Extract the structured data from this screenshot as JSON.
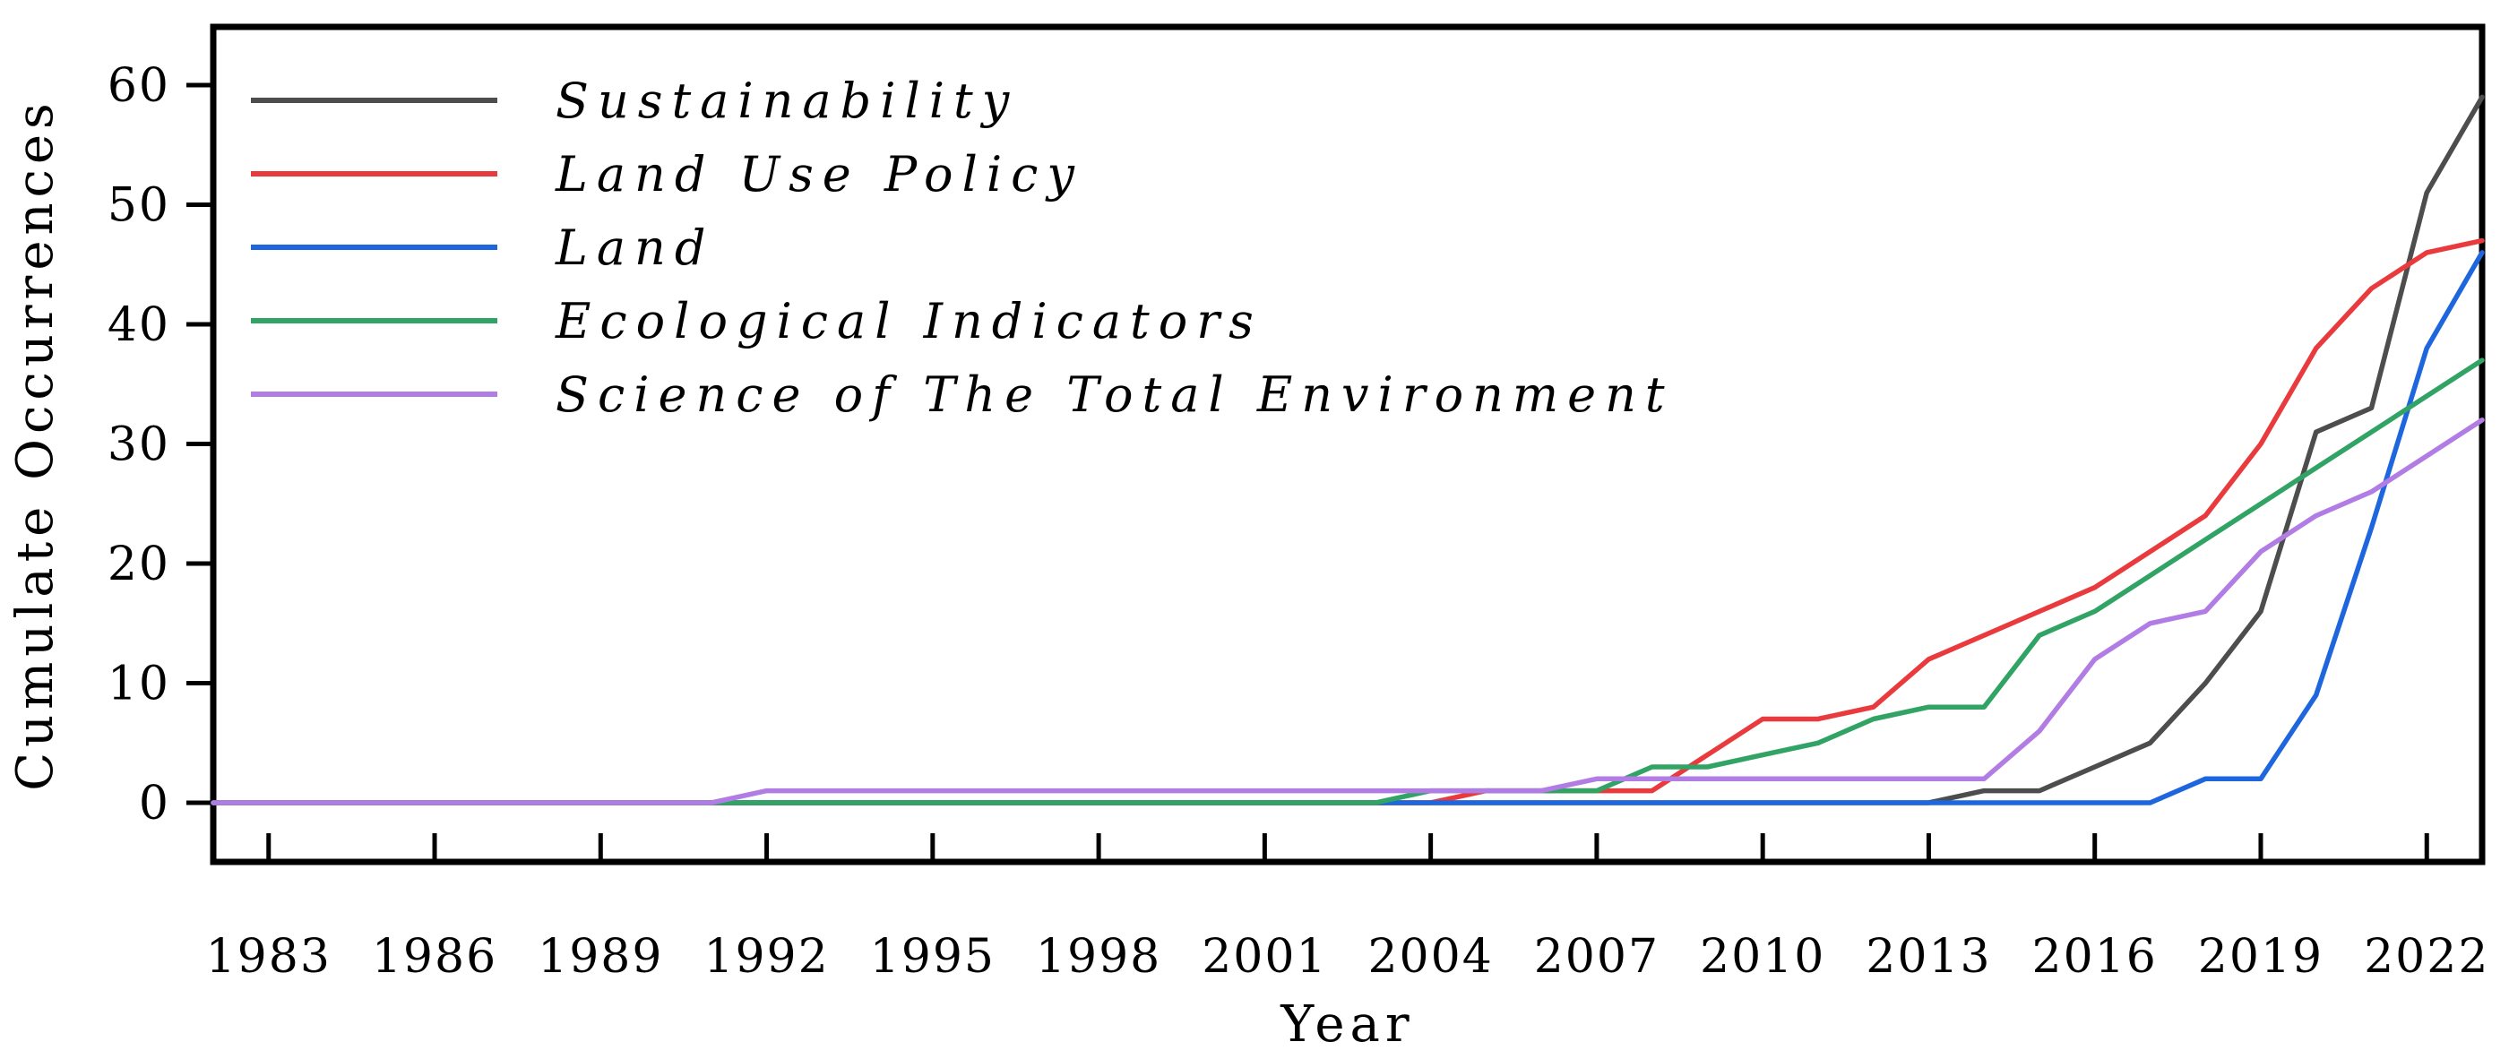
{
  "figure": {
    "xlabel": "Year",
    "ylabel": "Cumulate Occurrences",
    "background_color": "#ffffff",
    "axis_color": "#000000"
  },
  "chart_data": {
    "type": "line",
    "title": "",
    "xlabel": "Year",
    "ylabel": "Cumulate Occurrences",
    "grid": false,
    "legend_position": "upper left",
    "xlim": [
      1982,
      2023
    ],
    "ylim": [
      0,
      64
    ],
    "x": [
      1982,
      1983,
      1984,
      1985,
      1986,
      1987,
      1988,
      1989,
      1990,
      1991,
      1992,
      1993,
      1994,
      1995,
      1996,
      1997,
      1998,
      1999,
      2000,
      2001,
      2002,
      2003,
      2004,
      2005,
      2006,
      2007,
      2008,
      2009,
      2010,
      2011,
      2012,
      2013,
      2014,
      2015,
      2016,
      2017,
      2018,
      2019,
      2020,
      2021,
      2022,
      2023
    ],
    "x_tick_labels": [
      "1983",
      "1986",
      "1989",
      "1992",
      "1995",
      "1998",
      "2001",
      "2004",
      "2007",
      "2010",
      "2013",
      "2016",
      "2019",
      "2022"
    ],
    "x_tick_years": [
      1983,
      1986,
      1989,
      1992,
      1995,
      1998,
      2001,
      2004,
      2007,
      2010,
      2013,
      2016,
      2019,
      2022
    ],
    "y_ticks": [
      0,
      10,
      20,
      30,
      40,
      50,
      60
    ],
    "y_tick_labels": [
      "0",
      "10",
      "20",
      "30",
      "40",
      "50",
      "60"
    ],
    "series": [
      {
        "name": "Sustainability",
        "color": "#4d4d4d",
        "values": [
          0,
          0,
          0,
          0,
          0,
          0,
          0,
          0,
          0,
          0,
          0,
          0,
          0,
          0,
          0,
          0,
          0,
          0,
          0,
          0,
          0,
          0,
          0,
          0,
          0,
          0,
          0,
          0,
          0,
          0,
          0,
          0,
          1,
          1,
          3,
          5,
          10,
          16,
          31,
          33,
          51,
          59
        ]
      },
      {
        "name": "Land Use Policy",
        "color": "#e93b3e",
        "values": [
          0,
          0,
          0,
          0,
          0,
          0,
          0,
          0,
          0,
          0,
          0,
          0,
          0,
          0,
          0,
          0,
          0,
          0,
          0,
          0,
          0,
          0,
          0,
          1,
          1,
          1,
          1,
          4,
          7,
          7,
          8,
          12,
          14,
          16,
          18,
          21,
          24,
          30,
          38,
          43,
          46,
          47
        ]
      },
      {
        "name": "Land",
        "color": "#1e66dd",
        "values": [
          0,
          0,
          0,
          0,
          0,
          0,
          0,
          0,
          0,
          0,
          0,
          0,
          0,
          0,
          0,
          0,
          0,
          0,
          0,
          0,
          0,
          0,
          0,
          0,
          0,
          0,
          0,
          0,
          0,
          0,
          0,
          0,
          0,
          0,
          0,
          0,
          2,
          2,
          9,
          23,
          38,
          46
        ]
      },
      {
        "name": "Ecological Indicators",
        "color": "#30a365",
        "values": [
          0,
          0,
          0,
          0,
          0,
          0,
          0,
          0,
          0,
          0,
          0,
          0,
          0,
          0,
          0,
          0,
          0,
          0,
          0,
          0,
          0,
          0,
          1,
          1,
          1,
          1,
          3,
          3,
          4,
          5,
          7,
          8,
          8,
          14,
          16,
          19,
          22,
          25,
          28,
          31,
          34,
          37
        ]
      },
      {
        "name": "Science of The Total Environment",
        "color": "#b17de4",
        "values": [
          0,
          0,
          0,
          0,
          0,
          0,
          0,
          0,
          0,
          0,
          1,
          1,
          1,
          1,
          1,
          1,
          1,
          1,
          1,
          1,
          1,
          1,
          1,
          1,
          1,
          2,
          2,
          2,
          2,
          2,
          2,
          2,
          2,
          6,
          12,
          15,
          16,
          21,
          24,
          26,
          29,
          32
        ]
      }
    ]
  }
}
